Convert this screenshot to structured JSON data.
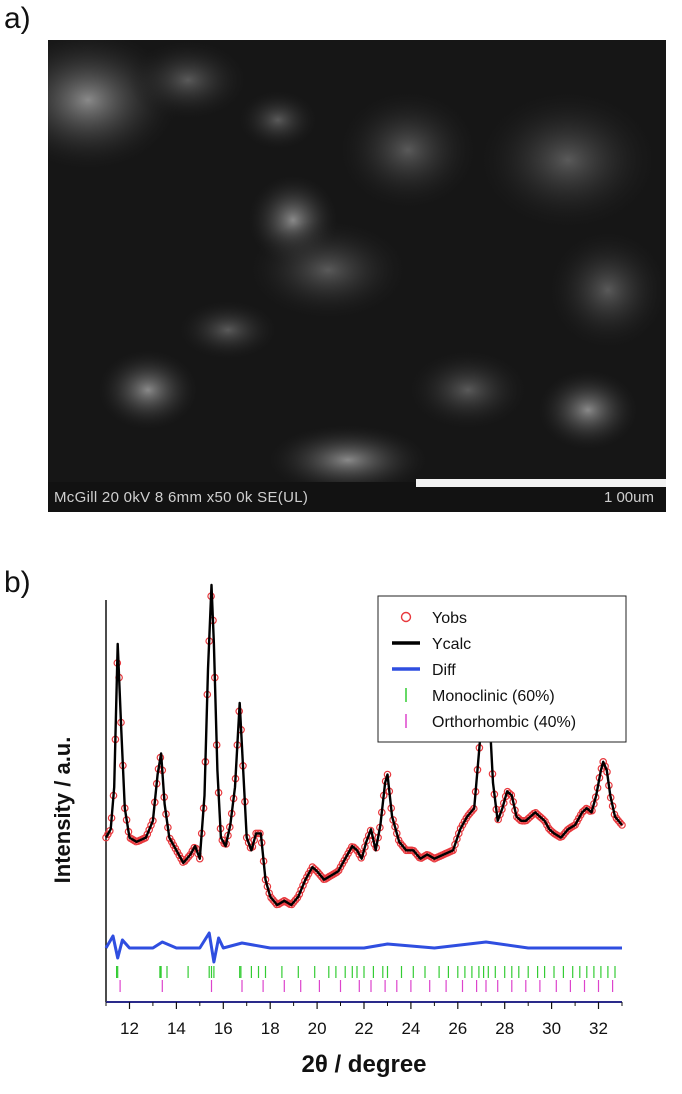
{
  "panel_a": {
    "label": "a)",
    "sem": {
      "info": "McGill 20 0kV 8 6mm x50 0k SE(UL)",
      "scale_label": "1 00um"
    }
  },
  "panel_b": {
    "label": "b)"
  },
  "colors": {
    "yobs": "#e8383d",
    "ycalc": "#000000",
    "diff": "#2f4ee0",
    "monoclinic": "#33cc33",
    "orthorhombic": "#dd44cc"
  },
  "chart_data": {
    "type": "line",
    "xlabel": "2θ / degree",
    "ylabel": "Intensity / a.u.",
    "xlim": [
      11,
      33
    ],
    "xticks": [
      12,
      14,
      16,
      18,
      20,
      22,
      24,
      26,
      28,
      30,
      32
    ],
    "yaxis_ticks": "none",
    "legend_position": "top-right",
    "legend": [
      {
        "label": "Yobs",
        "marker": "open-circle",
        "color": "#e8383d"
      },
      {
        "label": "Ycalc",
        "marker": "line",
        "color": "#000000"
      },
      {
        "label": "Diff",
        "marker": "line",
        "color": "#2f4ee0"
      },
      {
        "label": "Monoclinic (60%)",
        "marker": "tick",
        "color": "#33cc33"
      },
      {
        "label": "Orthorhombic (40%)",
        "marker": "tick",
        "color": "#dd44cc"
      }
    ],
    "series": [
      {
        "name": "Ycalc",
        "x": [
          11.0,
          11.2,
          11.35,
          11.5,
          11.65,
          11.8,
          12.0,
          12.3,
          12.7,
          13.0,
          13.2,
          13.35,
          13.5,
          13.7,
          14.0,
          14.3,
          14.6,
          14.8,
          15.0,
          15.2,
          15.35,
          15.5,
          15.6,
          15.75,
          15.9,
          16.1,
          16.3,
          16.5,
          16.7,
          16.85,
          17.0,
          17.2,
          17.4,
          17.6,
          17.8,
          18.0,
          18.3,
          18.6,
          18.9,
          19.2,
          19.5,
          19.8,
          20.0,
          20.3,
          20.6,
          20.9,
          21.2,
          21.5,
          21.7,
          21.9,
          22.1,
          22.3,
          22.5,
          22.7,
          22.9,
          23.0,
          23.2,
          23.5,
          23.8,
          24.1,
          24.4,
          24.7,
          25.0,
          25.4,
          25.8,
          26.1,
          26.4,
          26.7,
          26.9,
          27.05,
          27.2,
          27.35,
          27.5,
          27.7,
          27.9,
          28.1,
          28.3,
          28.5,
          28.7,
          28.9,
          29.1,
          29.3,
          29.5,
          29.7,
          29.9,
          30.1,
          30.4,
          30.7,
          31.0,
          31.3,
          31.5,
          31.7,
          31.9,
          32.1,
          32.2,
          32.35,
          32.5,
          32.7,
          33.0
        ],
        "y": [
          400,
          420,
          520,
          860,
          660,
          470,
          400,
          390,
          400,
          440,
          550,
          600,
          480,
          400,
          370,
          340,
          360,
          380,
          350,
          500,
          800,
          1000,
          860,
          560,
          400,
          380,
          430,
          520,
          720,
          560,
          400,
          370,
          410,
          410,
          300,
          260,
          240,
          250,
          240,
          260,
          300,
          330,
          320,
          300,
          310,
          320,
          350,
          380,
          370,
          350,
          390,
          420,
          370,
          430,
          530,
          550,
          450,
          390,
          370,
          370,
          350,
          360,
          350,
          360,
          370,
          420,
          450,
          470,
          600,
          700,
          740,
          690,
          530,
          440,
          470,
          510,
          500,
          450,
          440,
          440,
          450,
          460,
          450,
          440,
          420,
          410,
          400,
          420,
          430,
          460,
          470,
          460,
          500,
          560,
          580,
          560,
          500,
          450,
          430
        ]
      },
      {
        "name": "Diff",
        "x": [
          11.0,
          11.3,
          11.5,
          11.7,
          12.0,
          13.0,
          13.4,
          14.0,
          15.0,
          15.4,
          15.6,
          15.8,
          16.0,
          16.8,
          18.0,
          20.0,
          22.0,
          23.0,
          25.0,
          27.2,
          29.0,
          31.0,
          33.0
        ],
        "y": [
          0,
          12,
          -10,
          8,
          0,
          0,
          6,
          0,
          0,
          15,
          -14,
          10,
          0,
          5,
          0,
          0,
          0,
          4,
          0,
          6,
          0,
          0,
          0
        ]
      }
    ],
    "monoclinic_reflections": [
      11.45,
      11.5,
      13.3,
      13.35,
      13.6,
      14.5,
      15.4,
      15.5,
      15.6,
      16.7,
      16.75,
      17.2,
      17.5,
      17.8,
      18.5,
      19.2,
      19.9,
      20.5,
      20.8,
      21.2,
      21.5,
      21.7,
      22.0,
      22.4,
      22.8,
      23.0,
      23.6,
      24.1,
      24.6,
      25.2,
      25.6,
      26.0,
      26.3,
      26.6,
      26.9,
      27.1,
      27.3,
      27.6,
      28.0,
      28.3,
      28.6,
      29.0,
      29.4,
      29.7,
      30.1,
      30.5,
      30.9,
      31.2,
      31.5,
      31.8,
      32.1,
      32.4,
      32.7
    ],
    "orthorhombic_reflections": [
      11.6,
      13.4,
      15.5,
      16.8,
      17.7,
      18.6,
      19.3,
      20.1,
      21.0,
      21.8,
      22.3,
      22.9,
      23.4,
      24.0,
      24.8,
      25.5,
      26.2,
      26.8,
      27.2,
      27.7,
      28.3,
      28.9,
      29.5,
      30.2,
      30.8,
      31.4,
      32.0,
      32.6
    ]
  }
}
